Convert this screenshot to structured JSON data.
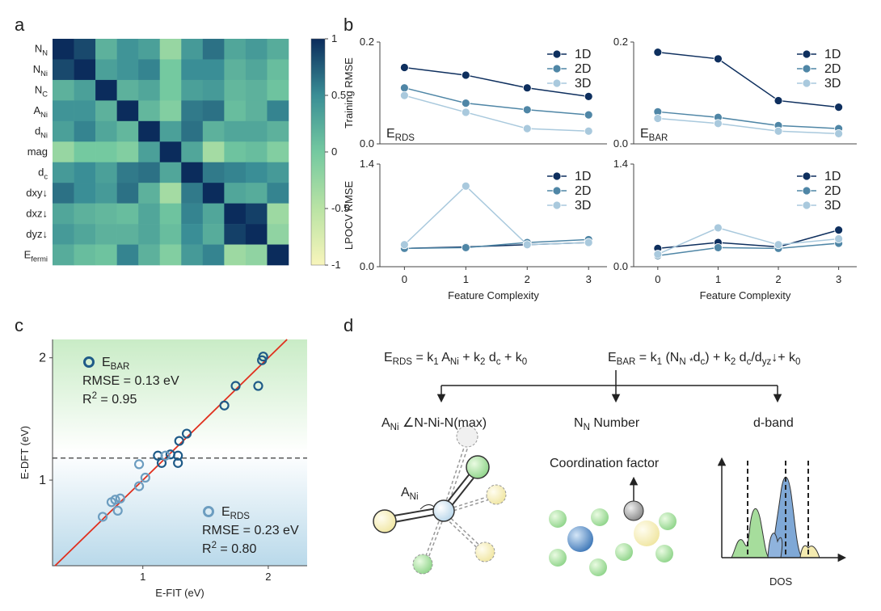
{
  "panel_labels": [
    "a",
    "b",
    "c",
    "d"
  ],
  "chart_data": [
    {
      "type": "heatmap",
      "rows": [
        [
          "N",
          {
            "sub": "N"
          }
        ],
        [
          "N",
          {
            "sub": "Ni"
          }
        ],
        [
          "N",
          {
            "sub": "C"
          }
        ],
        [
          "A",
          {
            "sub": "Ni"
          }
        ],
        [
          "d",
          {
            "sub": "Ni"
          }
        ],
        [
          "mag"
        ],
        [
          "d",
          {
            "sub": "c"
          }
        ],
        [
          "dxy↓"
        ],
        [
          "dxz↓"
        ],
        [
          "dyz↓"
        ],
        [
          "E",
          {
            "sub": "fermi"
          }
        ]
      ],
      "values": [
        [
          1,
          0.85,
          0.2,
          0.45,
          0.35,
          -0.25,
          0.4,
          0.65,
          0.3,
          0.4,
          0.25
        ],
        [
          0.85,
          1,
          0.35,
          0.45,
          0.55,
          0.0,
          0.5,
          0.5,
          0.2,
          0.3,
          0.1
        ],
        [
          0.2,
          0.35,
          1,
          0.2,
          0.3,
          0.0,
          0.35,
          0.4,
          0.15,
          0.2,
          0.05
        ],
        [
          0.45,
          0.45,
          0.2,
          1,
          0.15,
          -0.1,
          0.6,
          0.65,
          0.1,
          0.2,
          0.55
        ],
        [
          0.35,
          0.55,
          0.3,
          0.15,
          1,
          0.35,
          0.65,
          0.2,
          0.3,
          0.3,
          0.2
        ],
        [
          -0.25,
          0.0,
          0.0,
          -0.1,
          0.35,
          1,
          0.3,
          -0.35,
          0.05,
          0.1,
          -0.1
        ],
        [
          0.4,
          0.5,
          0.35,
          0.6,
          0.65,
          0.3,
          1,
          0.6,
          0.55,
          0.5,
          0.4
        ],
        [
          0.65,
          0.5,
          0.4,
          0.65,
          0.2,
          -0.35,
          0.6,
          1,
          0.3,
          0.25,
          0.55
        ],
        [
          0.3,
          0.2,
          0.15,
          0.1,
          0.3,
          0.05,
          0.55,
          0.3,
          1,
          0.9,
          -0.3
        ],
        [
          0.4,
          0.3,
          0.2,
          0.2,
          0.3,
          0.1,
          0.5,
          0.25,
          0.9,
          1,
          -0.2
        ],
        [
          0.25,
          0.1,
          0.05,
          0.55,
          0.2,
          -0.1,
          0.4,
          0.55,
          -0.3,
          -0.2,
          1
        ]
      ],
      "colorscale": [
        "#f8f5bb",
        "#b9e3a4",
        "#74c9a0",
        "#3a8e96",
        "#0b2c5c"
      ],
      "clim": [
        -1,
        1
      ],
      "cticks": [
        1,
        0.5,
        0,
        -0.5,
        -1
      ]
    },
    {
      "type": "line",
      "ylabel": "Training RMSE",
      "annotation": [
        "E",
        {
          "sub": "RDS"
        }
      ],
      "x": [
        0,
        1,
        2,
        3
      ],
      "xlim": [
        -0.4,
        3.3
      ],
      "ylim": [
        0,
        0.2
      ],
      "yticks": [
        {
          "value": 0,
          "label": "0.0"
        },
        0.2
      ],
      "series": [
        {
          "name": "1D",
          "color": "#0e2f5e",
          "values": [
            0.15,
            0.135,
            0.11,
            0.093
          ]
        },
        {
          "name": "2D",
          "color": "#4f86a6",
          "values": [
            0.11,
            0.08,
            0.067,
            0.057
          ]
        },
        {
          "name": "3D",
          "color": "#a9c9dd",
          "values": [
            0.095,
            0.062,
            0.03,
            0.025
          ]
        }
      ]
    },
    {
      "type": "line",
      "annotation": [
        "E",
        {
          "sub": "BAR"
        }
      ],
      "x": [
        0,
        1,
        2,
        3
      ],
      "xlim": [
        -0.4,
        3.3
      ],
      "ylim": [
        0,
        0.2
      ],
      "yticks": [
        {
          "value": 0,
          "label": "0.0"
        },
        0.2
      ],
      "series": [
        {
          "name": "1D",
          "color": "#0e2f5e",
          "values": [
            0.18,
            0.167,
            0.085,
            0.072
          ]
        },
        {
          "name": "2D",
          "color": "#4f86a6",
          "values": [
            0.063,
            0.052,
            0.036,
            0.03
          ]
        },
        {
          "name": "3D",
          "color": "#a9c9dd",
          "values": [
            0.05,
            0.04,
            0.025,
            0.02
          ]
        }
      ]
    },
    {
      "type": "line",
      "ylabel": "LPOCV RMSE",
      "xlabel": "Feature Complexity",
      "x": [
        0,
        1,
        2,
        3
      ],
      "xlim": [
        -0.4,
        3.3
      ],
      "ylim": [
        0,
        1.4
      ],
      "xticks": [
        0,
        1,
        2,
        3
      ],
      "yticks": [
        {
          "value": 0,
          "label": "0.0"
        },
        1.4
      ],
      "series": [
        {
          "name": "1D",
          "color": "#0e2f5e",
          "values": [
            0.25,
            0.27,
            0.3,
            0.33
          ]
        },
        {
          "name": "2D",
          "color": "#4f86a6",
          "values": [
            0.25,
            0.26,
            0.33,
            0.37
          ]
        },
        {
          "name": "3D",
          "color": "#a9c9dd",
          "values": [
            0.3,
            1.1,
            0.3,
            0.33
          ]
        }
      ]
    },
    {
      "type": "line",
      "xlabel": "Feature Complexity",
      "x": [
        0,
        1,
        2,
        3
      ],
      "xlim": [
        -0.4,
        3.3
      ],
      "ylim": [
        0,
        1.4
      ],
      "xticks": [
        0,
        1,
        2,
        3
      ],
      "yticks": [
        {
          "value": 0,
          "label": "0.0"
        },
        1.4
      ],
      "series": [
        {
          "name": "1D",
          "color": "#0e2f5e",
          "values": [
            0.25,
            0.33,
            0.27,
            0.5
          ]
        },
        {
          "name": "2D",
          "color": "#4f86a6",
          "values": [
            0.15,
            0.26,
            0.25,
            0.32
          ]
        },
        {
          "name": "3D",
          "color": "#a9c9dd",
          "values": [
            0.17,
            0.53,
            0.3,
            0.38
          ]
        }
      ]
    },
    {
      "type": "scatter",
      "xlabel": "E-FIT (eV)",
      "ylabel": "E-DFT (eV)",
      "xlim": [
        0.28,
        2.31
      ],
      "ylim": [
        0.3,
        2.15
      ],
      "xticks": [
        1,
        2
      ],
      "yticks": [
        1,
        2
      ],
      "hline": 1.18,
      "series": [
        {
          "name": [
            "E",
            {
              "sub": "BAR"
            }
          ],
          "color": "#1f5b88",
          "stats": [
            [
              "RMSE = 0.13 eV"
            ],
            [
              "R",
              {
                "sup": "2"
              },
              " = 0.95"
            ]
          ],
          "x": [
            1.12,
            1.22,
            1.28,
            1.29,
            1.35,
            1.65,
            1.74,
            1.92,
            1.95,
            1.96,
            1.15,
            1.28
          ],
          "values": [
            1.2,
            1.21,
            1.2,
            1.32,
            1.38,
            1.61,
            1.77,
            1.77,
            1.98,
            2.01,
            1.14,
            1.14
          ]
        },
        {
          "name": [
            "E",
            {
              "sub": "RDS"
            }
          ],
          "color": "#6c9dc0",
          "stats": [
            [
              "RMSE = 0.23 eV"
            ],
            [
              "R",
              {
                "sup": "2"
              },
              " = 0.80"
            ]
          ],
          "x": [
            0.68,
            0.75,
            0.78,
            0.8,
            0.82,
            0.97,
            1.02,
            0.97,
            1.18
          ],
          "values": [
            0.7,
            0.82,
            0.84,
            0.75,
            0.85,
            0.95,
            1.02,
            1.13,
            1.2
          ]
        }
      ]
    }
  ],
  "diagram": {
    "eq_rds": [
      "E",
      {
        "sub": "RDS"
      },
      " = k",
      {
        "sub": "1"
      },
      " A",
      {
        "sub": "Ni"
      },
      " + k",
      {
        "sub": "2"
      },
      " d",
      {
        "sub": "c"
      },
      " + k",
      {
        "sub": "0"
      }
    ],
    "eq_bar": [
      "E",
      {
        "sub": "BAR"
      },
      " = k",
      {
        "sub": "1"
      },
      " (N",
      {
        "sub": "N"
      },
      " ",
      {
        "sub": "*"
      },
      "d",
      {
        "sub": "c"
      },
      ") + k",
      {
        "sub": "2"
      },
      " d",
      {
        "sub": "c"
      },
      "/d",
      {
        "sub": "yz"
      },
      "↓+ k",
      {
        "sub": "0"
      }
    ],
    "branches": [
      [
        "A",
        {
          "sub": "Ni"
        },
        " ∠N-Ni-N(max)"
      ],
      [
        "N",
        {
          "sub": "N"
        },
        " Number"
      ],
      [
        "d-band"
      ]
    ],
    "angle_label": [
      "A",
      {
        "sub": "Ni"
      }
    ],
    "coordination_label": [
      "Coordination factor"
    ],
    "dos_label": [
      "DOS"
    ]
  }
}
